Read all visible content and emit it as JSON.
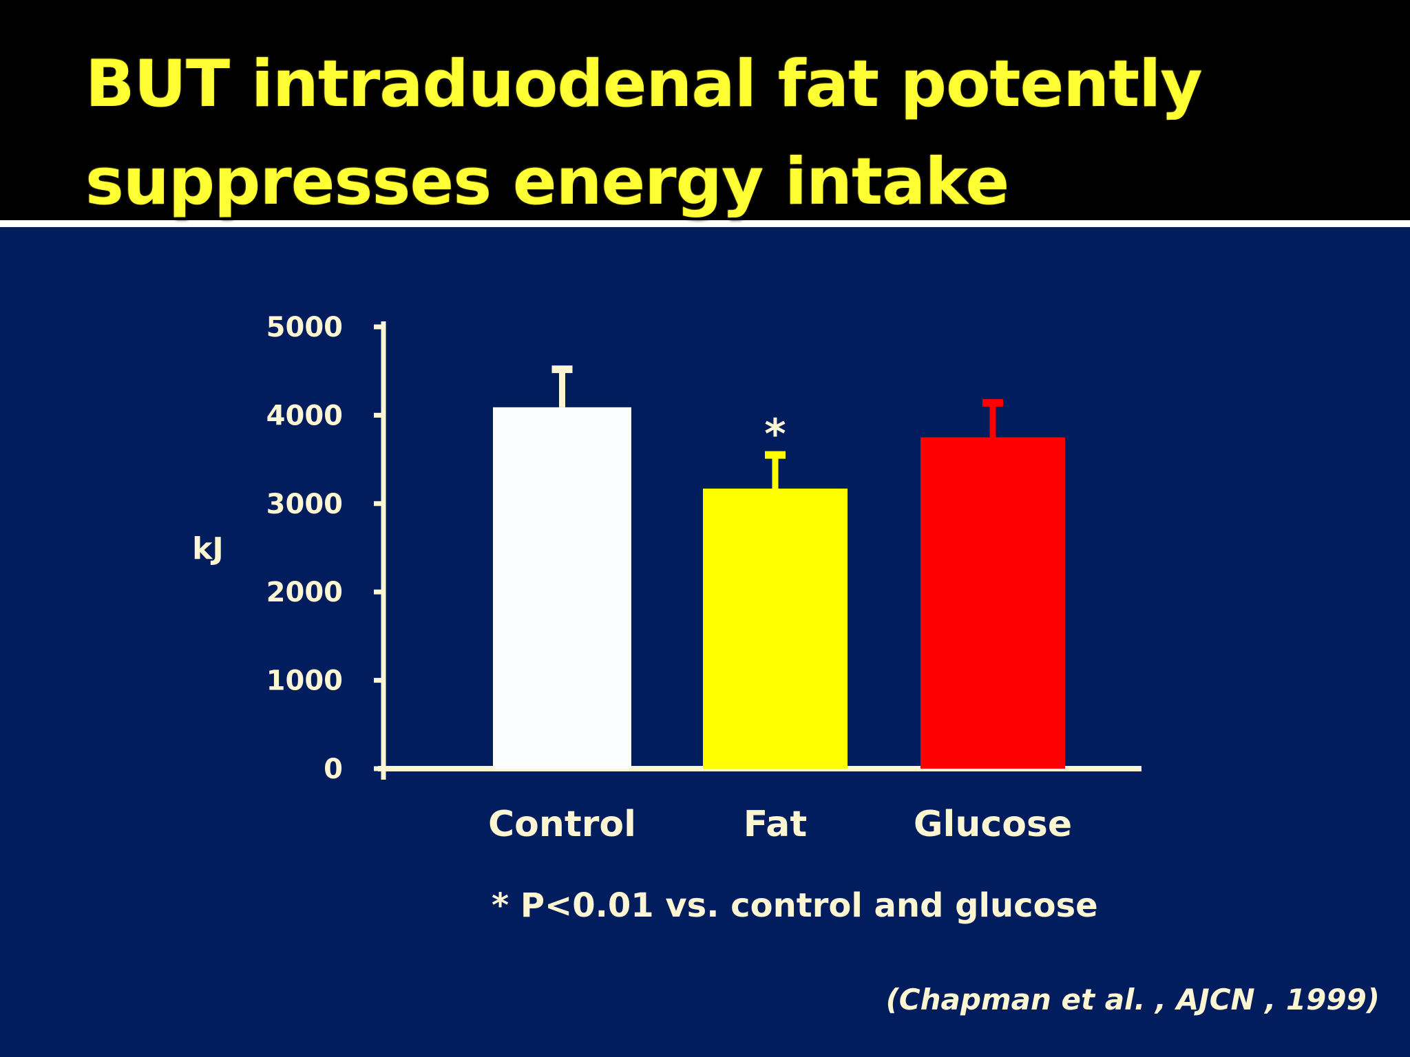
{
  "slide": {
    "title_lines": [
      "BUT intraduodenal fat potently",
      "suppresses energy intake"
    ],
    "footnote": "* P<0.01 vs. control and glucose",
    "citation": "(Chapman et al. , AJCN , 1999)",
    "colors": {
      "background": "#021d5e",
      "title_band": "#000000",
      "title_text": "#ffff33",
      "axis": "#fdf6d3"
    }
  },
  "chart_data": {
    "type": "bar",
    "title": "",
    "xlabel": "",
    "ylabel": "kJ",
    "ylim": [
      0,
      5000
    ],
    "yticks": [
      0,
      1000,
      2000,
      3000,
      4000,
      5000
    ],
    "ytick_labels": [
      "0",
      "1000",
      "2000",
      "3000",
      "4000",
      "5000"
    ],
    "grid": false,
    "legend": "none",
    "categories": [
      "Control",
      "Fat",
      "Glucose"
    ],
    "values": [
      4090,
      3170,
      3750
    ],
    "error_upper": [
      430,
      380,
      390
    ],
    "bar_colors": [
      "#fafeff",
      "#ffff00",
      "#ff0000"
    ],
    "error_colors": [
      "#fdf6d3",
      "#ffff00",
      "#ff0000"
    ],
    "annotations": [
      {
        "category": "Fat",
        "text": "*"
      }
    ]
  }
}
